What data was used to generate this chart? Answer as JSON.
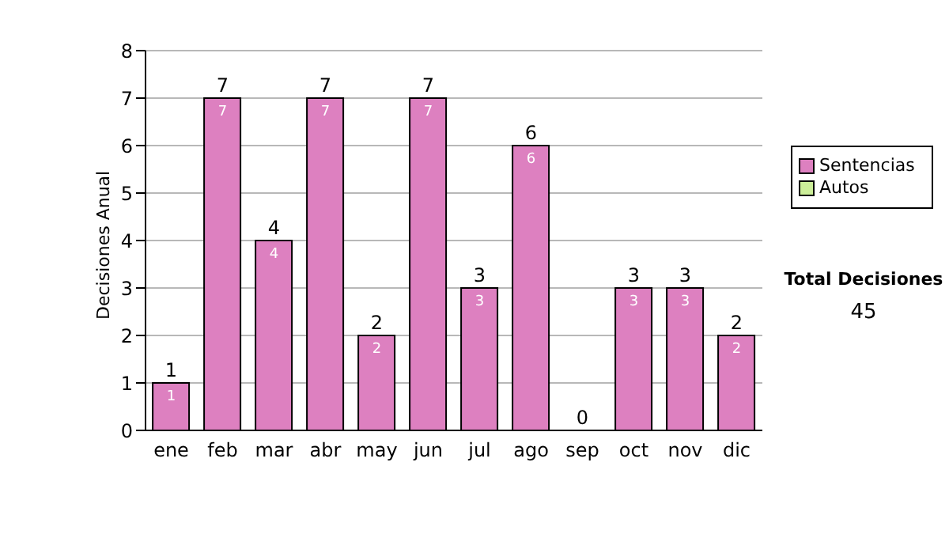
{
  "chart_data": {
    "type": "bar",
    "ylabel": "Decisiones Anual",
    "categories": [
      "ene",
      "feb",
      "mar",
      "abr",
      "may",
      "jun",
      "jul",
      "ago",
      "sep",
      "oct",
      "nov",
      "dic"
    ],
    "series": [
      {
        "name": "Sentencias",
        "color": "#dd80c0",
        "values": [
          1,
          7,
          4,
          7,
          2,
          7,
          3,
          6,
          0,
          3,
          3,
          2
        ],
        "value_labels": [
          "1",
          "7",
          "4",
          "7",
          "2",
          "7",
          "3",
          "6",
          null,
          "3",
          "3",
          "2"
        ]
      },
      {
        "name": "Autos",
        "color": "#ccee99",
        "values": [
          0,
          0,
          0,
          0,
          0,
          0,
          0,
          0,
          0,
          0,
          0,
          0
        ]
      }
    ],
    "stacked": true,
    "totals": [
      "1",
      "7",
      "4",
      "7",
      "2",
      "7",
      "3",
      "6",
      "0",
      "3",
      "3",
      "2"
    ],
    "ylim": [
      0,
      8
    ],
    "yticks": [
      0,
      1,
      2,
      3,
      4,
      5,
      6,
      7,
      8
    ],
    "grid": "y",
    "legend": "right",
    "annotations": [
      "Total Decisiones",
      "45"
    ]
  }
}
